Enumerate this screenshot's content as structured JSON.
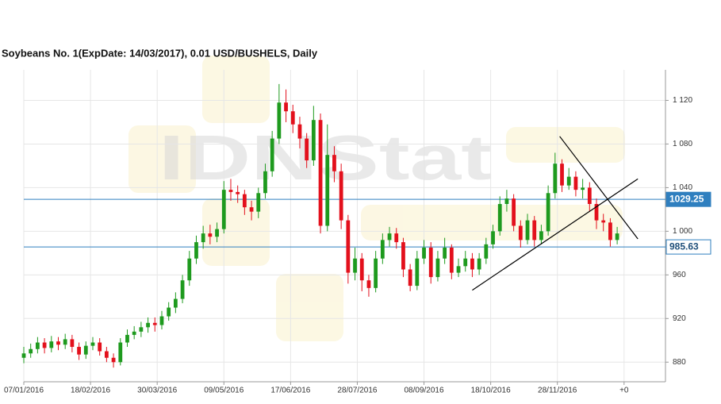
{
  "chart_data": {
    "type": "candlestick",
    "title": "Soybeans  No. 1(ExpDate: 14/03/2017), 0.01 USD/BUSHELS, Daily",
    "watermark": "IDNStat",
    "grid": true,
    "xlim": [
      0,
      279
    ],
    "ylim": [
      862,
      1148
    ],
    "xticks": [
      {
        "value": 0,
        "label": "07/01/2016"
      },
      {
        "value": 29,
        "label": "18/02/2016"
      },
      {
        "value": 58,
        "label": "30/03/2016"
      },
      {
        "value": 87,
        "label": "09/05/2016"
      },
      {
        "value": 116,
        "label": "17/06/2016"
      },
      {
        "value": 145,
        "label": "28/07/2016"
      },
      {
        "value": 174,
        "label": "08/09/2016"
      },
      {
        "value": 203,
        "label": "18/10/2016"
      },
      {
        "value": 232,
        "label": "28/11/2016"
      },
      {
        "value": 261,
        "label": "+0"
      }
    ],
    "yticks": [
      880,
      920,
      960,
      {
        "value": 1000,
        "label": "1 000"
      },
      {
        "value": 1040,
        "label": "1 040"
      },
      {
        "value": 1080,
        "label": "1 080"
      },
      {
        "value": 1120,
        "label": "1 120"
      }
    ],
    "up_color": "#1e9a1e",
    "down_color": "#e3101c",
    "series": [
      {
        "x": [
          0,
          3,
          6,
          9,
          12,
          15,
          18,
          21,
          24,
          27,
          30,
          33,
          36,
          39,
          42,
          45,
          48,
          51,
          54,
          57,
          60,
          63,
          66,
          69,
          72,
          75,
          78,
          81,
          84,
          87,
          90,
          93,
          96,
          99,
          102,
          105,
          108,
          111,
          114,
          117,
          120,
          123,
          126,
          129,
          132,
          135,
          138,
          141,
          144,
          147,
          150,
          153,
          156,
          159,
          162,
          165,
          168,
          171,
          174,
          177,
          180,
          183,
          186,
          189,
          192,
          195,
          198,
          201,
          204,
          207,
          210,
          213,
          216,
          219,
          222,
          225,
          228,
          231,
          234,
          237,
          240,
          243,
          246,
          249,
          252,
          255,
          258
        ],
        "open": [
          884,
          888,
          892,
          898,
          893,
          899,
          896,
          901,
          894,
          887,
          895,
          898,
          890,
          884,
          880,
          898,
          905,
          908,
          912,
          916,
          914,
          922,
          930,
          938,
          955,
          975,
          990,
          998,
          995,
          1002,
          1038,
          1036,
          1034,
          1022,
          1018,
          1035,
          1055,
          1085,
          1118,
          1110,
          1098,
          1085,
          1065,
          1102,
          1005,
          1070,
          1055,
          1010,
          962,
          975,
          955,
          948,
          975,
          992,
          998,
          990,
          965,
          950,
          975,
          985,
          958,
          975,
          985,
          962,
          968,
          975,
          965,
          975,
          988,
          1000,
          1025,
          1030,
          1005,
          992,
          1010,
          992,
          1000,
          1035,
          1062,
          1042,
          1050,
          1038,
          1040,
          1025,
          1010,
          1008,
          992
        ],
        "high": [
          894,
          897,
          903,
          902,
          904,
          903,
          906,
          905,
          898,
          899,
          903,
          902,
          894,
          888,
          902,
          910,
          913,
          917,
          921,
          921,
          927,
          935,
          944,
          960,
          982,
          996,
          1005,
          1006,
          1008,
          1046,
          1048,
          1042,
          1038,
          1028,
          1040,
          1062,
          1092,
          1135,
          1130,
          1116,
          1105,
          1090,
          1115,
          1108,
          1098,
          1078,
          1062,
          1015,
          985,
          980,
          960,
          982,
          998,
          1004,
          1003,
          994,
          970,
          982,
          992,
          990,
          982,
          994,
          988,
          975,
          982,
          980,
          980,
          994,
          1006,
          1032,
          1038,
          1034,
          1010,
          1016,
          1014,
          1006,
          1042,
          1072,
          1066,
          1058,
          1055,
          1048,
          1045,
          1030,
          1016,
          1012,
          1004
        ],
        "low": [
          879,
          884,
          888,
          888,
          889,
          891,
          892,
          889,
          882,
          883,
          891,
          886,
          880,
          875,
          877,
          894,
          901,
          903,
          907,
          908,
          910,
          918,
          925,
          934,
          950,
          970,
          984,
          988,
          990,
          998,
          1028,
          1026,
          1015,
          1010,
          1012,
          1030,
          1050,
          1080,
          1100,
          1090,
          1076,
          1058,
          1060,
          998,
          1000,
          1045,
          1002,
          952,
          955,
          945,
          940,
          944,
          970,
          986,
          984,
          958,
          945,
          946,
          970,
          952,
          954,
          970,
          956,
          958,
          963,
          958,
          960,
          970,
          984,
          996,
          1018,
          1000,
          985,
          988,
          986,
          988,
          996,
          1030,
          1036,
          1038,
          1032,
          1030,
          1018,
          1002,
          1000,
          986,
          988
        ],
        "close": [
          888,
          892,
          898,
          893,
          899,
          896,
          901,
          894,
          887,
          895,
          898,
          890,
          884,
          880,
          898,
          905,
          908,
          912,
          916,
          914,
          922,
          930,
          938,
          955,
          975,
          990,
          998,
          995,
          1002,
          1038,
          1036,
          1034,
          1022,
          1018,
          1035,
          1055,
          1085,
          1118,
          1110,
          1098,
          1085,
          1065,
          1102,
          1005,
          1070,
          1055,
          1010,
          962,
          975,
          955,
          948,
          975,
          992,
          998,
          990,
          965,
          950,
          975,
          985,
          958,
          975,
          985,
          962,
          968,
          975,
          965,
          975,
          988,
          1000,
          1025,
          1030,
          1005,
          992,
          1010,
          992,
          1000,
          1035,
          1062,
          1042,
          1050,
          1038,
          1040,
          1025,
          1010,
          1008,
          992,
          998
        ]
      }
    ],
    "horizontal_lines": [
      {
        "value": 1029.25,
        "color": "#2f7fbf",
        "label_filled": true
      },
      {
        "value": 985.63,
        "color": "#2f7fbf",
        "label_filled": false
      }
    ],
    "trendlines": [
      {
        "x": [
          195,
          267
        ],
        "y": [
          946,
          1048
        ],
        "color": "#000000"
      },
      {
        "x": [
          233,
          267
        ],
        "y": [
          1087,
          993
        ],
        "color": "#000000"
      }
    ]
  }
}
